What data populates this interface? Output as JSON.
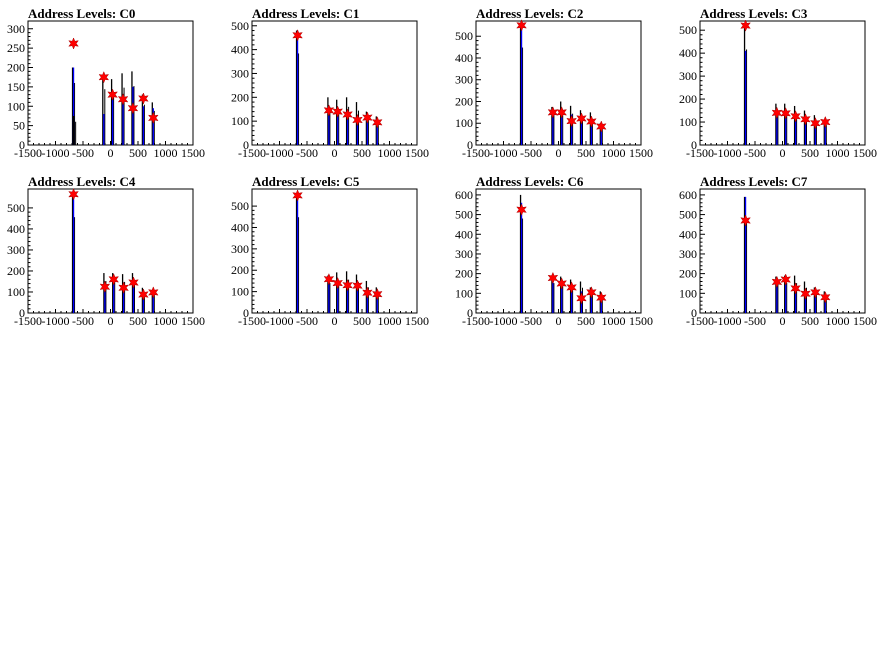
{
  "colors": {
    "histogram": "#000000",
    "fit": "#0000ff",
    "marker": "#ff0000",
    "frame": "#000000"
  },
  "chart_data": [
    {
      "type": "histogram",
      "title": "Address Levels: C0",
      "xlim": [
        -1500,
        1500
      ],
      "ylim": [
        0,
        320
      ],
      "xticks": [
        "-1500",
        "-1000",
        "-500",
        "0",
        "500",
        "1000",
        "1500"
      ],
      "yticks": [
        "0",
        "50",
        "100",
        "150",
        "200",
        "250",
        "300"
      ],
      "ytick_values": [
        0,
        50,
        100,
        150,
        200,
        250,
        300
      ],
      "spikes": [
        {
          "x": -690,
          "hist": 200,
          "fit": 200
        },
        {
          "x": -670,
          "hist": 75,
          "fit": 0
        },
        {
          "x": -140,
          "hist": 180,
          "fit": 80
        },
        {
          "x": 20,
          "hist": 170,
          "fit": 130
        },
        {
          "x": 210,
          "hist": 185,
          "fit": 125
        },
        {
          "x": 390,
          "hist": 190,
          "fit": 150
        },
        {
          "x": 580,
          "hist": 130,
          "fit": 100
        },
        {
          "x": 760,
          "hist": 110,
          "fit": 95
        }
      ],
      "peaks": [
        {
          "x": -690,
          "y": 262
        },
        {
          "x": -140,
          "y": 175
        },
        {
          "x": 20,
          "y": 130
        },
        {
          "x": 210,
          "y": 118
        },
        {
          "x": 390,
          "y": 95
        },
        {
          "x": 580,
          "y": 120
        },
        {
          "x": 760,
          "y": 70
        }
      ]
    },
    {
      "type": "histogram",
      "title": "Address Levels: C1",
      "xlim": [
        -1500,
        1500
      ],
      "ylim": [
        0,
        520
      ],
      "xticks": [
        "-1500",
        "-1000",
        "-500",
        "0",
        "500",
        "1000",
        "1500"
      ],
      "yticks": [
        "0",
        "100",
        "200",
        "300",
        "400",
        "500"
      ],
      "ytick_values": [
        0,
        100,
        200,
        300,
        400,
        500
      ],
      "spikes": [
        {
          "x": -690,
          "hist": 480,
          "fit": 480
        },
        {
          "x": -120,
          "hist": 200,
          "fit": 150
        },
        {
          "x": 40,
          "hist": 190,
          "fit": 140
        },
        {
          "x": 220,
          "hist": 200,
          "fit": 130
        },
        {
          "x": 400,
          "hist": 180,
          "fit": 110
        },
        {
          "x": 580,
          "hist": 140,
          "fit": 110
        },
        {
          "x": 760,
          "hist": 120,
          "fit": 90
        }
      ],
      "peaks": [
        {
          "x": -690,
          "y": 460
        },
        {
          "x": -120,
          "y": 145
        },
        {
          "x": 40,
          "y": 140
        },
        {
          "x": 220,
          "y": 128
        },
        {
          "x": 400,
          "y": 105
        },
        {
          "x": 580,
          "y": 115
        },
        {
          "x": 760,
          "y": 95
        }
      ]
    },
    {
      "type": "histogram",
      "title": "Address Levels: C2",
      "xlim": [
        -1500,
        1500
      ],
      "ylim": [
        0,
        570
      ],
      "xticks": [
        "-1500",
        "-1000",
        "-500",
        "0",
        "500",
        "1000",
        "1500"
      ],
      "yticks": [
        "0",
        "100",
        "200",
        "300",
        "400",
        "500"
      ],
      "ytick_values": [
        0,
        100,
        200,
        300,
        400,
        500
      ],
      "spikes": [
        {
          "x": -690,
          "hist": 560,
          "fit": 560
        },
        {
          "x": -120,
          "hist": 175,
          "fit": 160
        },
        {
          "x": 40,
          "hist": 200,
          "fit": 150
        },
        {
          "x": 220,
          "hist": 180,
          "fit": 140
        },
        {
          "x": 400,
          "hist": 160,
          "fit": 120
        },
        {
          "x": 580,
          "hist": 150,
          "fit": 110
        },
        {
          "x": 760,
          "hist": 100,
          "fit": 90
        }
      ],
      "peaks": [
        {
          "x": -690,
          "y": 550
        },
        {
          "x": -120,
          "y": 150
        },
        {
          "x": 40,
          "y": 150
        },
        {
          "x": 220,
          "y": 110
        },
        {
          "x": 400,
          "y": 122
        },
        {
          "x": 580,
          "y": 108
        },
        {
          "x": 760,
          "y": 85
        }
      ]
    },
    {
      "type": "histogram",
      "title": "Address Levels: C3",
      "xlim": [
        -1500,
        1500
      ],
      "ylim": [
        0,
        540
      ],
      "xticks": [
        "-1500",
        "-1000",
        "-500",
        "0",
        "500",
        "1000",
        "1500"
      ],
      "yticks": [
        "0",
        "100",
        "200",
        "300",
        "400",
        "500"
      ],
      "ytick_values": [
        0,
        100,
        200,
        300,
        400,
        500
      ],
      "spikes": [
        {
          "x": -690,
          "hist": 520,
          "fit": 410
        },
        {
          "x": -120,
          "hist": 180,
          "fit": 150
        },
        {
          "x": 40,
          "hist": 180,
          "fit": 140
        },
        {
          "x": 220,
          "hist": 170,
          "fit": 130
        },
        {
          "x": 400,
          "hist": 150,
          "fit": 110
        },
        {
          "x": 580,
          "hist": 130,
          "fit": 100
        },
        {
          "x": 760,
          "hist": 110,
          "fit": 95
        }
      ],
      "peaks": [
        {
          "x": -690,
          "y": 520
        },
        {
          "x": -120,
          "y": 140
        },
        {
          "x": 40,
          "y": 138
        },
        {
          "x": 220,
          "y": 125
        },
        {
          "x": 400,
          "y": 112
        },
        {
          "x": 580,
          "y": 95
        },
        {
          "x": 760,
          "y": 100
        }
      ]
    },
    {
      "type": "histogram",
      "title": "Address Levels: C4",
      "xlim": [
        -1500,
        1500
      ],
      "ylim": [
        0,
        590
      ],
      "xticks": [
        "-1500",
        "-1000",
        "-500",
        "0",
        "500",
        "1000",
        "1500"
      ],
      "yticks": [
        "0",
        "100",
        "200",
        "300",
        "400",
        "500"
      ],
      "ytick_values": [
        0,
        100,
        200,
        300,
        400,
        500
      ],
      "spikes": [
        {
          "x": -690,
          "hist": 570,
          "fit": 570
        },
        {
          "x": -120,
          "hist": 190,
          "fit": 130
        },
        {
          "x": 40,
          "hist": 190,
          "fit": 160
        },
        {
          "x": 220,
          "hist": 185,
          "fit": 125
        },
        {
          "x": 400,
          "hist": 190,
          "fit": 150
        },
        {
          "x": 580,
          "hist": 120,
          "fit": 90
        },
        {
          "x": 760,
          "hist": 110,
          "fit": 100
        }
      ],
      "peaks": [
        {
          "x": -690,
          "y": 565
        },
        {
          "x": -120,
          "y": 125
        },
        {
          "x": 40,
          "y": 160
        },
        {
          "x": 220,
          "y": 120
        },
        {
          "x": 400,
          "y": 145
        },
        {
          "x": 580,
          "y": 88
        },
        {
          "x": 760,
          "y": 98
        }
      ]
    },
    {
      "type": "histogram",
      "title": "Address Levels: C5",
      "xlim": [
        -1500,
        1500
      ],
      "ylim": [
        0,
        580
      ],
      "xticks": [
        "-1500",
        "-1000",
        "-500",
        "0",
        "500",
        "1000",
        "1500"
      ],
      "yticks": [
        "0",
        "100",
        "200",
        "300",
        "400",
        "500"
      ],
      "ytick_values": [
        0,
        100,
        200,
        300,
        400,
        500
      ],
      "spikes": [
        {
          "x": -690,
          "hist": 560,
          "fit": 560
        },
        {
          "x": -120,
          "hist": 175,
          "fit": 160
        },
        {
          "x": 40,
          "hist": 190,
          "fit": 150
        },
        {
          "x": 220,
          "hist": 195,
          "fit": 130
        },
        {
          "x": 400,
          "hist": 180,
          "fit": 125
        },
        {
          "x": 580,
          "hist": 150,
          "fit": 100
        },
        {
          "x": 760,
          "hist": 120,
          "fit": 90
        }
      ],
      "peaks": [
        {
          "x": -690,
          "y": 550
        },
        {
          "x": -120,
          "y": 158
        },
        {
          "x": 40,
          "y": 140
        },
        {
          "x": 220,
          "y": 130
        },
        {
          "x": 400,
          "y": 128
        },
        {
          "x": 580,
          "y": 95
        },
        {
          "x": 760,
          "y": 88
        }
      ]
    },
    {
      "type": "histogram",
      "title": "Address Levels: C6",
      "xlim": [
        -1500,
        1500
      ],
      "ylim": [
        0,
        630
      ],
      "xticks": [
        "-1500",
        "-1000",
        "-500",
        "0",
        "500",
        "1000",
        "1500"
      ],
      "yticks": [
        "0",
        "100",
        "200",
        "300",
        "400",
        "500",
        "600"
      ],
      "ytick_values": [
        0,
        100,
        200,
        300,
        400,
        500,
        600
      ],
      "spikes": [
        {
          "x": -690,
          "hist": 600,
          "fit": 560
        },
        {
          "x": -120,
          "hist": 190,
          "fit": 170
        },
        {
          "x": 40,
          "hist": 185,
          "fit": 150
        },
        {
          "x": 220,
          "hist": 170,
          "fit": 130
        },
        {
          "x": 400,
          "hist": 160,
          "fit": 110
        },
        {
          "x": 580,
          "hist": 130,
          "fit": 100
        },
        {
          "x": 760,
          "hist": 110,
          "fit": 90
        }
      ],
      "peaks": [
        {
          "x": -690,
          "y": 525
        },
        {
          "x": -120,
          "y": 178
        },
        {
          "x": 40,
          "y": 150
        },
        {
          "x": 220,
          "y": 130
        },
        {
          "x": 400,
          "y": 75
        },
        {
          "x": 580,
          "y": 105
        },
        {
          "x": 760,
          "y": 78
        }
      ]
    },
    {
      "type": "histogram",
      "title": "Address Levels: C7",
      "xlim": [
        -1500,
        1500
      ],
      "ylim": [
        0,
        630
      ],
      "xticks": [
        "-1500",
        "-1000",
        "-500",
        "0",
        "500",
        "1000",
        "1500"
      ],
      "yticks": [
        "0",
        "100",
        "200",
        "300",
        "400",
        "500",
        "600"
      ],
      "ytick_values": [
        0,
        100,
        200,
        300,
        400,
        500,
        600
      ],
      "spikes": [
        {
          "x": -690,
          "hist": 590,
          "fit": 590
        },
        {
          "x": -120,
          "hist": 185,
          "fit": 160
        },
        {
          "x": 40,
          "hist": 190,
          "fit": 170
        },
        {
          "x": 220,
          "hist": 190,
          "fit": 130
        },
        {
          "x": 400,
          "hist": 160,
          "fit": 110
        },
        {
          "x": 580,
          "hist": 130,
          "fit": 100
        },
        {
          "x": 760,
          "hist": 110,
          "fit": 90
        }
      ],
      "peaks": [
        {
          "x": -690,
          "y": 470
        },
        {
          "x": -120,
          "y": 158
        },
        {
          "x": 40,
          "y": 170
        },
        {
          "x": 220,
          "y": 125
        },
        {
          "x": 400,
          "y": 98
        },
        {
          "x": 580,
          "y": 105
        },
        {
          "x": 760,
          "y": 80
        }
      ]
    }
  ]
}
